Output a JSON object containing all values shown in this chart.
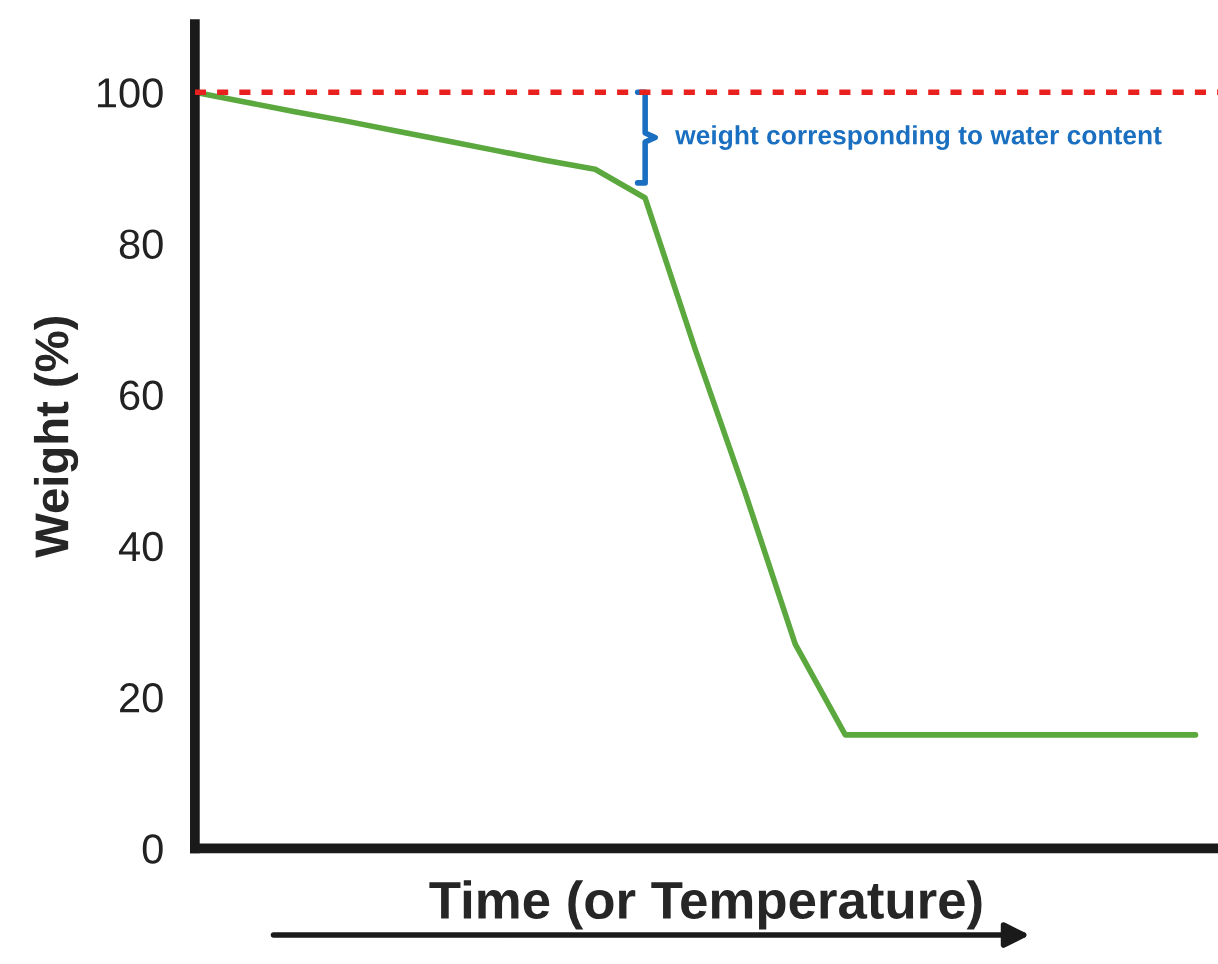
{
  "chart_data": {
    "type": "line",
    "xlabel": "Time (or Temperature)",
    "ylabel": "Weight (%)",
    "categories": [
      null,
      null,
      null,
      null,
      null,
      null,
      null,
      null,
      null,
      null,
      null,
      null,
      null,
      null,
      null,
      null,
      null,
      null,
      null,
      null,
      null
    ],
    "series": [
      {
        "color": "#5aa83e",
        "values": [
          100,
          98.7,
          97.4,
          96.2,
          94.9,
          93.6,
          92.3,
          91.0,
          89.8,
          86,
          66,
          47,
          27,
          15,
          15,
          15,
          15,
          15,
          15,
          15,
          15
        ]
      }
    ],
    "ylim": [
      0,
      109
    ],
    "yticks": [
      0,
      20,
      40,
      60,
      80,
      100
    ],
    "ref_lines": [
      {
        "axis": "y",
        "value": 100,
        "color": "#e8201e",
        "line_style": "dotted"
      }
    ],
    "annotations": [
      "weight corresponding to water content"
    ],
    "grid": false,
    "legend": false,
    "marker": "none",
    "line_style": "solid"
  }
}
